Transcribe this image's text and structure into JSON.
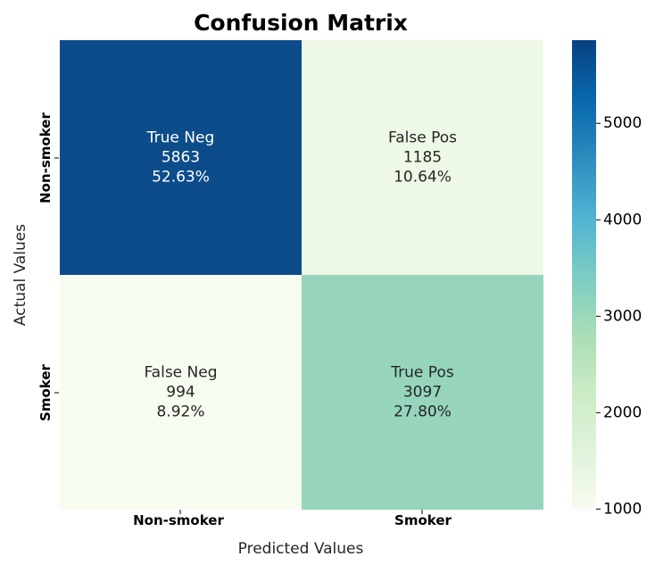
{
  "chart_data": {
    "type": "heatmap",
    "title": "Confusion Matrix",
    "xlabel": "Predicted Values",
    "ylabel": "Actual Values",
    "x_categories": [
      "Non-smoker",
      "Smoker"
    ],
    "y_categories": [
      "Non-smoker",
      "Smoker"
    ],
    "cells": [
      [
        {
          "name": "True Neg",
          "count": "5863",
          "percent": "52.63%"
        },
        {
          "name": "False Pos",
          "count": "1185",
          "percent": "10.64%"
        }
      ],
      [
        {
          "name": "False Neg",
          "count": "994",
          "percent": "8.92%"
        },
        {
          "name": "True Pos",
          "count": "3097",
          "percent": "27.80%"
        }
      ]
    ],
    "values": [
      [
        5863,
        1185
      ],
      [
        994,
        3097
      ]
    ],
    "colormap": "GnBu",
    "colorbar": {
      "range": [
        994,
        5863
      ],
      "ticks": [
        1000,
        2000,
        3000,
        4000,
        5000
      ],
      "tick_labels": [
        "1000",
        "2000",
        "3000",
        "4000",
        "5000"
      ]
    },
    "colors": {
      "cell_0_0": "#0c4c8a",
      "cell_0_1": "#eef8e6",
      "cell_1_0": "#f7fcf0",
      "cell_1_1": "#96d5bc",
      "dark_text": "#262626",
      "light_text": "#ffffff"
    }
  }
}
